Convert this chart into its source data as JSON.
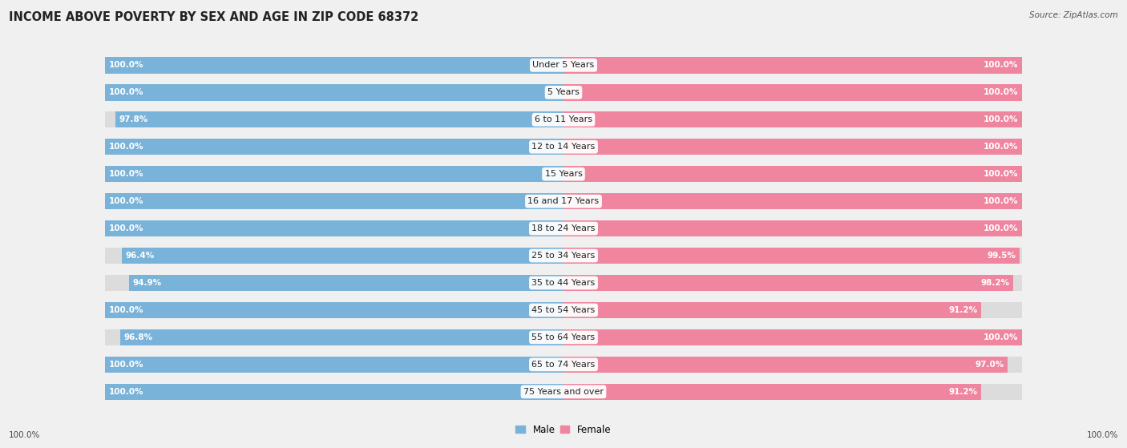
{
  "title": "INCOME ABOVE POVERTY BY SEX AND AGE IN ZIP CODE 68372",
  "source": "Source: ZipAtlas.com",
  "categories": [
    "Under 5 Years",
    "5 Years",
    "6 to 11 Years",
    "12 to 14 Years",
    "15 Years",
    "16 and 17 Years",
    "18 to 24 Years",
    "25 to 34 Years",
    "35 to 44 Years",
    "45 to 54 Years",
    "55 to 64 Years",
    "65 to 74 Years",
    "75 Years and over"
  ],
  "male_values": [
    100.0,
    100.0,
    97.8,
    100.0,
    100.0,
    100.0,
    100.0,
    96.4,
    94.9,
    100.0,
    96.8,
    100.0,
    100.0
  ],
  "female_values": [
    100.0,
    100.0,
    100.0,
    100.0,
    100.0,
    100.0,
    100.0,
    99.5,
    98.2,
    91.2,
    100.0,
    97.0,
    91.2
  ],
  "male_color": "#7ab3d9",
  "female_color": "#f085a0",
  "bg_color": "#f0f0f0",
  "bar_bg_color": "#dcdcdc",
  "title_fontsize": 10.5,
  "label_fontsize": 8,
  "value_fontsize": 7.5,
  "legend_fontsize": 8.5,
  "xlabel_bottom_left": "100.0%",
  "xlabel_bottom_right": "100.0%"
}
